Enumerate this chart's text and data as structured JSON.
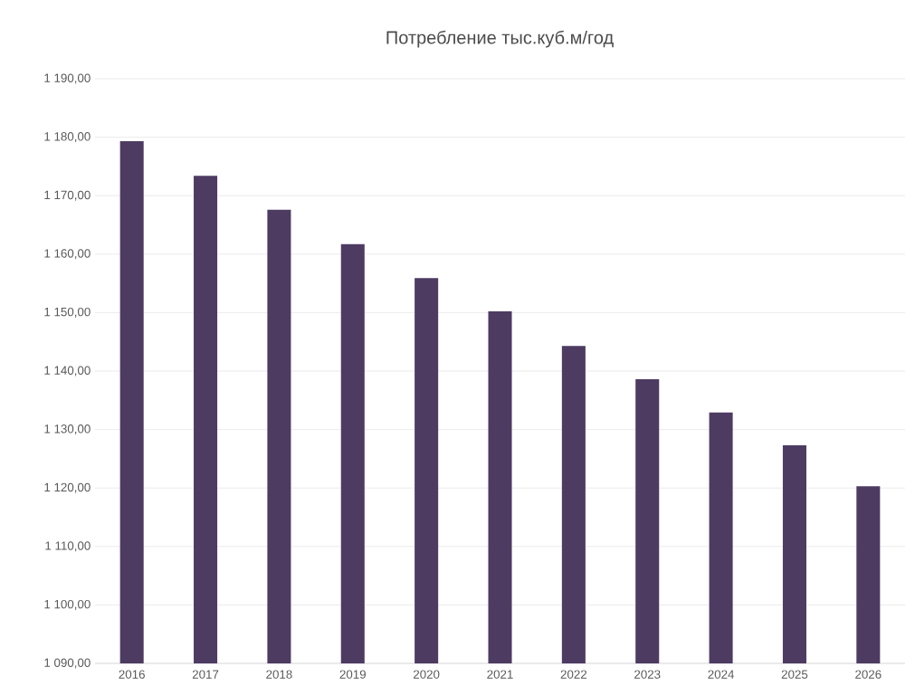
{
  "chart_data": {
    "type": "bar",
    "title": "Потребление тыс.куб.м/год",
    "categories": [
      "2016",
      "2017",
      "2018",
      "2019",
      "2020",
      "2021",
      "2022",
      "2023",
      "2024",
      "2025",
      "2026"
    ],
    "values": [
      1179.3,
      1173.4,
      1167.6,
      1161.7,
      1155.9,
      1150.2,
      1144.3,
      1138.6,
      1132.9,
      1127.3,
      1120.3
    ],
    "color": "#4d3b62",
    "ylim": [
      1090,
      1190
    ],
    "yticks": [
      {
        "value": 1090,
        "label": "1 090,00"
      },
      {
        "value": 1100,
        "label": "1 100,00"
      },
      {
        "value": 1110,
        "label": "1 110,00"
      },
      {
        "value": 1120,
        "label": "1 120,00"
      },
      {
        "value": 1130,
        "label": "1 130,00"
      },
      {
        "value": 1140,
        "label": "1 140,00"
      },
      {
        "value": 1150,
        "label": "1 150,00"
      },
      {
        "value": 1160,
        "label": "1 160,00"
      },
      {
        "value": 1170,
        "label": "1 170,00"
      },
      {
        "value": 1180,
        "label": "1 180,00"
      },
      {
        "value": 1190,
        "label": "1 190,00"
      }
    ],
    "grid": "y"
  }
}
